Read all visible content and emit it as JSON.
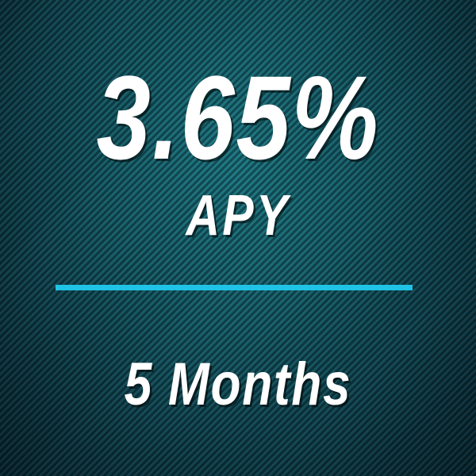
{
  "rate": "3.65%",
  "rate_label": "APY",
  "term": "5 Months",
  "colors": {
    "background": "#135a66",
    "divider": "#1fc3e6",
    "text": "#ffffff"
  }
}
